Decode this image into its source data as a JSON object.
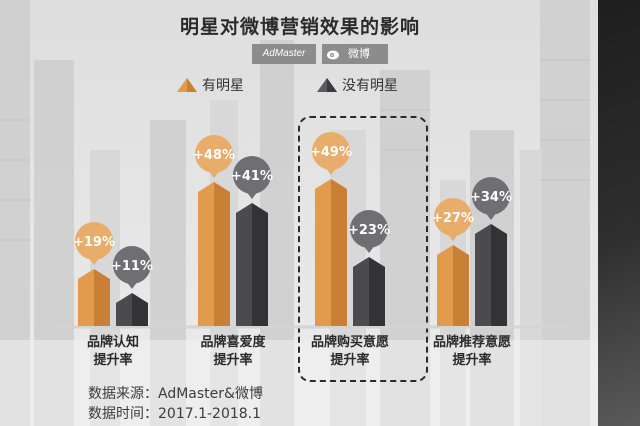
{
  "chart_data": {
    "type": "bar",
    "title": "明星对微博营销效果的影响",
    "categories": [
      "品牌认知\n提升率",
      "品牌喜爱度\n提升率",
      "品牌购买意愿\n提升率",
      "品牌推荐意愿\n提升率"
    ],
    "series": [
      {
        "name": "有明星",
        "values": [
          19,
          48,
          49,
          27
        ],
        "labels": [
          "+19%",
          "+48%",
          "+49%",
          "+27%"
        ],
        "color": "#e29a4c"
      },
      {
        "name": "没有明星",
        "values": [
          11,
          41,
          23,
          34
        ],
        "labels": [
          "+11%",
          "+41%",
          "+23%",
          "+34%"
        ],
        "color": "#4a4a4f"
      }
    ],
    "highlighted_category": "品牌购买意愿\n提升率",
    "legend_position": "top",
    "grid": false,
    "axes_visible": false
  },
  "logos": {
    "admaster": "AdMaster",
    "weibo": "微博"
  },
  "source": {
    "line1": "数据来源：AdMaster&微博",
    "line2": "数据时间：2017.1-2018.1"
  },
  "colors": {
    "with_star_bubble": "#e8ad6a",
    "without_star_bubble": "#6f6f73",
    "with_star_bar": "#e29a4c",
    "without_star_bar": "#4a4a4f"
  }
}
